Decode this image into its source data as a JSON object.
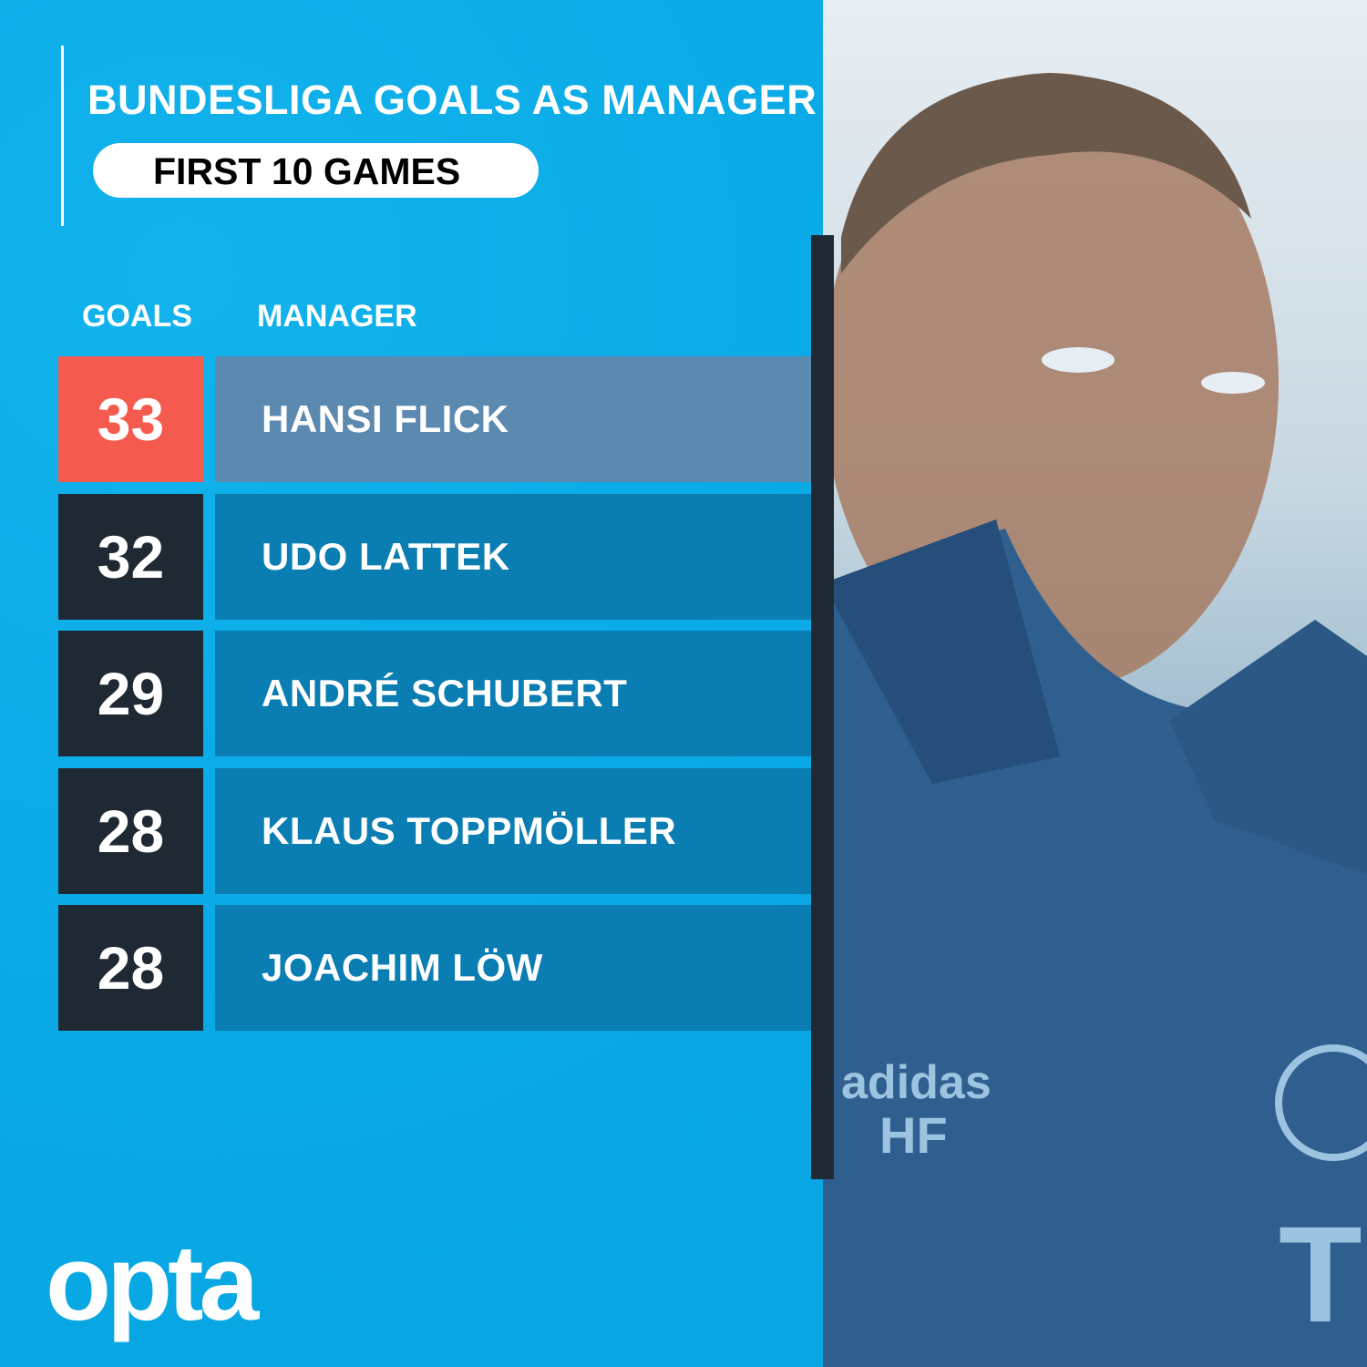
{
  "header": {
    "title": "BUNDESLIGA GOALS AS MANAGER",
    "subtitle": "FIRST 10 GAMES"
  },
  "columns": {
    "goals": "GOALS",
    "manager": "MANAGER"
  },
  "colors": {
    "background": "#0aabe6",
    "highlight_goal": "#f45a4d",
    "highlight_name": "#5b89b0",
    "goal_box": "#1f2933",
    "name_box": "#0a7db2"
  },
  "chart_data": {
    "type": "table",
    "title": "BUNDESLIGA GOALS AS MANAGER",
    "subtitle": "FIRST 10 GAMES",
    "columns": [
      "GOALS",
      "MANAGER"
    ],
    "rows": [
      {
        "goals": "33",
        "manager": "HANSI FLICK",
        "highlighted": true
      },
      {
        "goals": "32",
        "manager": "UDO LATTEK",
        "highlighted": false
      },
      {
        "goals": "29",
        "manager": "ANDRÉ SCHUBERT",
        "highlighted": false
      },
      {
        "goals": "28",
        "manager": "KLAUS TOPPMÖLLER",
        "highlighted": false
      },
      {
        "goals": "28",
        "manager": "JOACHIM LÖW",
        "highlighted": false
      }
    ]
  },
  "branding": {
    "logo": "opta"
  },
  "photo": {
    "jacket_text": "HF",
    "jacket_brand": "adidas"
  }
}
